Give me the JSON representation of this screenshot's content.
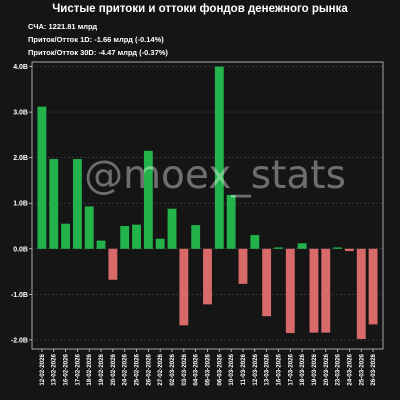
{
  "chart_data": {
    "type": "bar",
    "title": "Чистые притоки и оттоки фондов денежного рынка",
    "stats": [
      "СЧА: 1221.81 млрд",
      "Приток/Отток 1D: -1.66 млрд (-0.14%)",
      "Приток/Отток 30D: -4.47 млрд (-0.37%)"
    ],
    "watermark": "@moex_stats",
    "categories": [
      "12-02-2026",
      "13-02-2026",
      "16-02-2026",
      "17-02-2026",
      "18-02-2026",
      "19-02-2026",
      "20-02-2026",
      "24-02-2026",
      "25-02-2026",
      "26-02-2026",
      "27-02-2026",
      "02-03-2026",
      "03-03-2026",
      "04-03-2026",
      "05-03-2026",
      "06-03-2026",
      "10-03-2026",
      "11-03-2026",
      "12-03-2026",
      "13-03-2026",
      "16-03-2026",
      "17-03-2026",
      "18-03-2026",
      "19-03-2026",
      "20-03-2026",
      "23-03-2026",
      "24-03-2026",
      "25-03-2026",
      "26-03-2026"
    ],
    "values": [
      3.12,
      1.97,
      0.55,
      1.97,
      0.93,
      0.18,
      -0.68,
      0.5,
      0.53,
      2.15,
      0.22,
      0.88,
      -1.68,
      0.52,
      -1.22,
      4.0,
      1.18,
      -0.77,
      0.3,
      -1.48,
      0.03,
      -1.85,
      0.12,
      -1.84,
      -1.84,
      0.03,
      -0.05,
      -1.98,
      -1.66
    ],
    "ylim": [
      -2.2,
      4.1
    ],
    "yticks": [
      4.0,
      3.0,
      2.0,
      1.0,
      0.0,
      -1.0,
      -2.0
    ],
    "ytick_labels": [
      "4.0B",
      "3.0B",
      "2.0B",
      "1.0B",
      "0.0B",
      "-1.0B",
      "-2.0B"
    ],
    "xlabel": "",
    "ylabel": "",
    "grid": true,
    "colors": {
      "positive": "#22b34a",
      "negative": "#d96a6a",
      "background": "#151515",
      "grid": "#4a4a4a",
      "axis": "#cccccc",
      "watermark": "#ffffff"
    }
  }
}
